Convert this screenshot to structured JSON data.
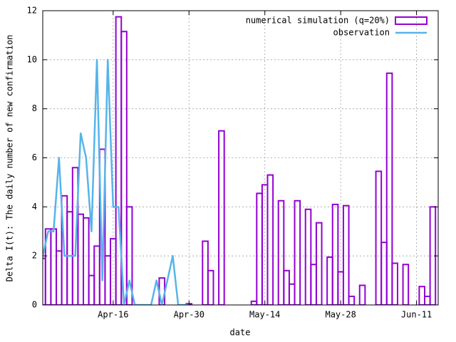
{
  "chart_data": {
    "type": "bar",
    "xlabel": "date",
    "ylabel": "Delta I(t): The daily number of new confirmation",
    "xlim": [
      "Apr-03",
      "Jun-15"
    ],
    "ylim": [
      0,
      12
    ],
    "xticks": [
      "Apr-16",
      "Apr-30",
      "May-14",
      "May-28",
      "Jun-11"
    ],
    "yticks": [
      0,
      2,
      4,
      6,
      8,
      10,
      12
    ],
    "grid": true,
    "legend": "top right",
    "series": [
      {
        "name": "numerical simulation (q=20%)",
        "type": "bar",
        "color": "#9400d3",
        "x": [
          "Apr-03",
          "Apr-04",
          "Apr-05",
          "Apr-06",
          "Apr-07",
          "Apr-08",
          "Apr-09",
          "Apr-10",
          "Apr-11",
          "Apr-12",
          "Apr-13",
          "Apr-14",
          "Apr-15",
          "Apr-16",
          "Apr-17",
          "Apr-18",
          "Apr-19",
          "Apr-25",
          "Apr-30",
          "May-03",
          "May-04",
          "May-06",
          "May-12",
          "May-13",
          "May-14",
          "May-15",
          "May-17",
          "May-18",
          "May-19",
          "May-20",
          "May-22",
          "May-23",
          "May-24",
          "May-26",
          "May-27",
          "May-28",
          "May-29",
          "May-30",
          "Jun-01",
          "Jun-04",
          "Jun-05",
          "Jun-06",
          "Jun-07",
          "Jun-09",
          "Jun-12",
          "Jun-13",
          "Jun-14"
        ],
        "values": [
          1.9,
          3.1,
          3.1,
          2.2,
          4.45,
          3.8,
          5.6,
          3.7,
          3.55,
          1.2,
          2.4,
          6.35,
          2.0,
          2.7,
          11.75,
          11.15,
          4.0,
          1.1,
          0.05,
          2.6,
          1.4,
          7.1,
          0.15,
          4.55,
          4.9,
          5.3,
          4.25,
          1.4,
          0.85,
          4.25,
          3.9,
          1.65,
          3.35,
          1.95,
          4.1,
          1.35,
          4.05,
          0.35,
          0.8,
          5.45,
          2.55,
          9.45,
          1.7,
          1.65,
          0.75,
          0.35,
          4.0
        ]
      },
      {
        "name": "observation",
        "type": "line",
        "color": "#56b4e9",
        "x": [
          "Apr-03",
          "Apr-04",
          "Apr-05",
          "Apr-06",
          "Apr-07",
          "Apr-08",
          "Apr-09",
          "Apr-10",
          "Apr-11",
          "Apr-12",
          "Apr-13",
          "Apr-14",
          "Apr-15",
          "Apr-16",
          "Apr-17",
          "Apr-18",
          "Apr-19",
          "Apr-20",
          "Apr-21",
          "Apr-22",
          "Apr-23",
          "Apr-24",
          "Apr-25",
          "Apr-26",
          "Apr-27",
          "Apr-28",
          "Apr-29",
          "Apr-30"
        ],
        "values": [
          2,
          3,
          3,
          6,
          2,
          2,
          2,
          7,
          6,
          3,
          10,
          1,
          10,
          4,
          4,
          0,
          1,
          0,
          0,
          0,
          0,
          1,
          0,
          1,
          2,
          0,
          0,
          0
        ]
      }
    ]
  }
}
